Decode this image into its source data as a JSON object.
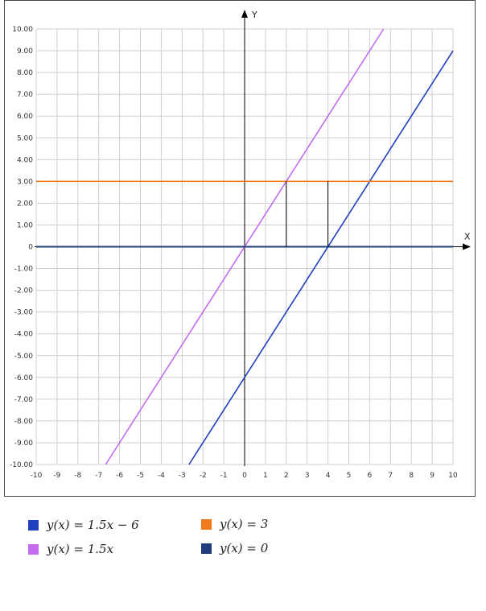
{
  "chart_data": {
    "type": "line",
    "xlabel": "X",
    "ylabel": "Y",
    "xlim": [
      -10,
      10
    ],
    "ylim": [
      -10,
      10
    ],
    "grid": true,
    "x_ticks": [
      -10,
      -9,
      -8,
      -7,
      -6,
      -5,
      -4,
      -3,
      -2,
      -1,
      0,
      1,
      2,
      3,
      4,
      5,
      6,
      7,
      8,
      9,
      10
    ],
    "x_tick_labels": [
      "-10",
      "-9",
      "-8",
      "-7",
      "-6",
      "-5",
      "-4",
      "-3",
      "-2",
      "-1",
      "0",
      "1",
      "2",
      "3",
      "4",
      "5",
      "6",
      "7",
      "8",
      "9",
      "10"
    ],
    "y_ticks": [
      10,
      9,
      8,
      7,
      6,
      5,
      4,
      3,
      2,
      1,
      0,
      -1,
      -2,
      -3,
      -4,
      -5,
      -6,
      -7,
      -8,
      -9,
      -10
    ],
    "y_tick_labels": [
      "10.00",
      "9.00",
      "8.00",
      "7.00",
      "6.00",
      "5.00",
      "4.00",
      "3.00",
      "2.00",
      "1.00",
      "0",
      "-1.00",
      "-2.00",
      "-3.00",
      "-4.00",
      "-5.00",
      "-6.00",
      "-7.00",
      "-8.00",
      "-9.00",
      "-10.00"
    ],
    "series": [
      {
        "name": "y(x) = 1.5x − 6",
        "color": "#1f3fbf",
        "x": [
          -2.667,
          10
        ],
        "y": [
          -10,
          9
        ]
      },
      {
        "name": "y(x) = 1.5x",
        "color": "#c46bf0",
        "x": [
          -6.667,
          6.667
        ],
        "y": [
          -10,
          10
        ]
      },
      {
        "name": "y(x) = 3",
        "color": "#f07a1c",
        "x": [
          -10,
          10
        ],
        "y": [
          3,
          3
        ]
      },
      {
        "name": "y(x) = 0",
        "color": "#203c7a",
        "x": [
          -10,
          10
        ],
        "y": [
          0,
          0
        ]
      }
    ],
    "annotations": [
      {
        "type": "vertical-segment",
        "x": 2,
        "y": [
          0,
          3
        ],
        "color": "#000000"
      },
      {
        "type": "vertical-segment",
        "x": 4,
        "y": [
          0,
          3
        ],
        "color": "#000000"
      }
    ],
    "legend": {
      "position": "bottom",
      "items": [
        {
          "label": "y(x) = 1.5x − 6",
          "color": "#1f3fbf"
        },
        {
          "label": "y(x) = 3",
          "color": "#f07a1c"
        },
        {
          "label": "y(x) = 1.5x",
          "color": "#c46bf0"
        },
        {
          "label": "y(x) = 0",
          "color": "#203c7a"
        }
      ]
    }
  }
}
